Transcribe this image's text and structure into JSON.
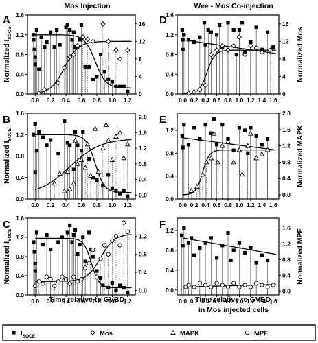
{
  "figure": {
    "left_title": "Mos Injection",
    "right_title": "Wee - Mos Co-injection",
    "left_xlabel": "Time relative to GVBD",
    "left_xlabel_sub": "I",
    "right_xlabel_line1": "Time relative to GVBD",
    "right_xlabel_sub": "I",
    "right_xlabel_line2": "in Mos injected cells",
    "ylabel_left_main": "Normalized I",
    "ylabel_left_sub": "SOCE",
    "legend": [
      {
        "marker": "square",
        "label": "I",
        "sub": "SOCE"
      },
      {
        "marker": "diamond",
        "label": "Mos",
        "sub": ""
      },
      {
        "marker": "triangle",
        "label": "MAPK",
        "sub": ""
      },
      {
        "marker": "circle",
        "label": "MPF",
        "sub": ""
      }
    ]
  },
  "chart_data": [
    {
      "panel": "A",
      "type": "scatter",
      "ylabel_left": "Normalized I SOCE",
      "ylabel_right": "",
      "xlim": [
        -0.1,
        1.3
      ],
      "xticks": [
        "0.0",
        "0.2",
        "0.4",
        "0.6",
        "0.8",
        "1.0",
        "1.2"
      ],
      "yleft": [
        0,
        1.6
      ],
      "ylticks": [
        "0.0",
        "0.4",
        "0.8",
        "1.2",
        "1.6"
      ],
      "yright": [
        0,
        18
      ],
      "yrticks": [
        "0",
        "4",
        "8",
        "12",
        "16"
      ],
      "series": [
        {
          "name": "ISOCE",
          "marker": "square",
          "axis": "left",
          "x": [
            -0.02,
            -0.02,
            -0.01,
            0.0,
            0.0,
            0.02,
            0.05,
            0.08,
            0.12,
            0.15,
            0.2,
            0.25,
            0.28,
            0.32,
            0.4,
            0.42,
            0.45,
            0.48,
            0.5,
            0.52,
            0.55,
            0.58,
            0.6,
            0.65,
            0.7,
            0.75,
            0.8,
            0.85,
            0.9,
            0.95,
            1.0,
            1.05,
            1.1,
            1.15,
            1.2
          ],
          "y": [
            1.2,
            1.1,
            0.9,
            0.75,
            0.6,
            1.3,
            0.5,
            1.15,
            0.95,
            1.05,
            1.25,
            0.95,
            1.3,
            1.0,
            1.35,
            1.4,
            1.3,
            1.1,
            1.25,
            0.95,
            0.95,
            1.1,
            1.4,
            0.55,
            0.55,
            0.3,
            0.35,
            0.8,
            0.45,
            0.3,
            0.25,
            0.15,
            0.15,
            0.15,
            0.05
          ]
        },
        {
          "name": "Mos",
          "marker": "diamond",
          "axis": "right",
          "x": [
            0.05,
            0.12,
            0.3,
            0.38,
            0.45,
            0.5,
            0.55,
            0.62,
            0.68,
            0.75,
            0.88,
            0.95,
            1.05,
            1.1,
            1.2
          ],
          "y": [
            0.2,
            1.0,
            2.5,
            6.0,
            8.5,
            9.0,
            11.0,
            13.0,
            12.5,
            12.0,
            16.0,
            12.0,
            10.0,
            8.0,
            10.0
          ]
        },
        {
          "name": "ISOCE fit",
          "line": "sigmoid",
          "axis": "left",
          "from": 1.2,
          "to": 0.12,
          "mid": 0.78,
          "slope": 0.07
        },
        {
          "name": "Mos fit",
          "line": "sigmoid",
          "axis": "right",
          "from": 0,
          "to": 12,
          "mid": 0.38,
          "slope": 0.09
        }
      ]
    },
    {
      "panel": "B",
      "type": "scatter",
      "ylabel_left": "Normalized I SOCE",
      "ylabel_right": "",
      "xlim": [
        -0.1,
        1.3
      ],
      "xticks": [
        "0.0",
        "0.2",
        "0.4",
        "0.6",
        "0.8",
        "1.0",
        "1.2"
      ],
      "yleft": [
        0,
        1.6
      ],
      "ylticks": [
        "0.0",
        "0.4",
        "0.8",
        "1.2",
        "1.6"
      ],
      "yright": [
        -0.1,
        2.1
      ],
      "yrticks": [
        "0.0",
        "0.4",
        "0.8",
        "1.2",
        "1.6",
        "2.0"
      ],
      "series": [
        {
          "name": "ISOCE",
          "marker": "square",
          "axis": "left",
          "x": [
            -0.02,
            0.0,
            0.0,
            0.02,
            0.05,
            0.1,
            0.15,
            0.2,
            0.3,
            0.38,
            0.42,
            0.45,
            0.5,
            0.52,
            0.55,
            0.6,
            0.62,
            0.7,
            0.75,
            0.8,
            0.88,
            0.95,
            1.0,
            1.05,
            1.1,
            1.15,
            1.2
          ],
          "y": [
            1.2,
            1.4,
            0.5,
            0.9,
            1.25,
            1.15,
            1.0,
            1.1,
            0.85,
            1.45,
            1.05,
            1.0,
            0.55,
            1.25,
            1.0,
            0.9,
            1.25,
            0.75,
            0.4,
            0.35,
            0.25,
            0.45,
            0.2,
            0.15,
            0.1,
            0.15,
            0.05
          ]
        },
        {
          "name": "MAPK",
          "marker": "triangle",
          "axis": "right",
          "x": [
            0.25,
            0.32,
            0.38,
            0.42,
            0.45,
            0.5,
            0.52,
            0.55,
            0.6,
            0.65,
            0.68,
            0.72,
            0.78,
            0.82,
            0.88,
            0.92,
            0.95,
            1.0,
            1.05,
            1.1,
            1.15,
            1.2
          ],
          "y": [
            0.3,
            0.55,
            0.1,
            0.6,
            0.15,
            0.3,
            1.4,
            0.8,
            0.9,
            0.7,
            1.3,
            0.5,
            1.7,
            0.6,
            1.2,
            1.8,
            1.4,
            0.9,
            1.5,
            1.6,
            0.95,
            1.3
          ]
        },
        {
          "name": "ISOCE fit",
          "line": "sigmoid",
          "axis": "left",
          "from": 1.2,
          "to": 0.12,
          "mid": 0.78,
          "slope": 0.06
        },
        {
          "name": "MAPK fit",
          "line": "sigmoid",
          "axis": "right",
          "from": 0,
          "to": 1.45,
          "mid": 0.45,
          "slope": 0.2
        }
      ]
    },
    {
      "panel": "C",
      "type": "scatter",
      "ylabel_left": "Normalized I SOCE",
      "ylabel_right": "",
      "xlim": [
        -0.1,
        1.3
      ],
      "xticks": [
        "0.0",
        "0.2",
        "0.4",
        "0.6",
        "0.8",
        "1.0",
        "1.2"
      ],
      "yleft": [
        0,
        1.6
      ],
      "ylticks": [
        "0.0",
        "0.4",
        "0.8",
        "1.2",
        "1.6"
      ],
      "yright": [
        -0.1,
        1.6
      ],
      "yrticks": [
        "0.0",
        "0.4",
        "0.8",
        "1.2"
      ],
      "series": [
        {
          "name": "ISOCE",
          "marker": "square",
          "axis": "left",
          "x": [
            -0.02,
            -0.01,
            0.0,
            0.0,
            0.02,
            0.1,
            0.15,
            0.2,
            0.3,
            0.35,
            0.42,
            0.45,
            0.48,
            0.5,
            0.52,
            0.55,
            0.58,
            0.62,
            0.65,
            0.7,
            0.72,
            0.75,
            0.8,
            0.85,
            0.88,
            0.95,
            1.0,
            1.05,
            1.1,
            1.15,
            1.2
          ],
          "y": [
            1.1,
            0.9,
            0.65,
            0.5,
            1.3,
            1.05,
            1.25,
            0.95,
            1.1,
            1.2,
            1.3,
            1.45,
            1.1,
            1.25,
            1.35,
            0.85,
            1.05,
            1.2,
            0.7,
            1.3,
            0.95,
            0.8,
            0.5,
            0.35,
            0.2,
            0.15,
            0.25,
            0.1,
            0.2,
            0.15,
            0.05
          ]
        },
        {
          "name": "MPF",
          "marker": "circle",
          "axis": "right",
          "x": [
            0.0,
            0.05,
            0.1,
            0.15,
            0.2,
            0.25,
            0.3,
            0.35,
            0.4,
            0.45,
            0.5,
            0.55,
            0.6,
            0.65,
            0.7,
            0.75,
            0.8,
            0.85,
            0.9,
            0.95,
            1.0,
            1.05,
            1.1,
            1.15,
            1.2
          ],
          "y": [
            0.1,
            0.2,
            0.15,
            0.3,
            0.25,
            0.1,
            0.2,
            0.3,
            0.25,
            0.15,
            0.3,
            0.2,
            0.25,
            0.5,
            0.6,
            0.9,
            0.3,
            0.7,
            1.0,
            0.8,
            1.1,
            1.2,
            1.0,
            1.5,
            1.3
          ]
        },
        {
          "name": "ISOCE fit",
          "line": "sigmoid",
          "axis": "left",
          "from": 1.18,
          "to": 0.15,
          "mid": 0.73,
          "slope": 0.05
        },
        {
          "name": "MPF fit",
          "line": "sigmoid",
          "axis": "right",
          "from": 0.2,
          "to": 1.25,
          "mid": 0.85,
          "slope": 0.09
        }
      ]
    },
    {
      "panel": "D",
      "type": "scatter",
      "ylabel_left": "",
      "ylabel_right": "Normalized Mos",
      "xlim": [
        -0.1,
        1.7
      ],
      "xticks": [
        "0.0",
        "0.2",
        "0.4",
        "0.6",
        "0.8",
        "1.0",
        "1.2",
        "1.4",
        "1.6"
      ],
      "yleft": [
        0,
        1.6
      ],
      "ylticks": [
        "0.0",
        "0.4",
        "0.8",
        "1.2",
        "1.6"
      ],
      "yright": [
        0,
        18
      ],
      "yrticks": [
        "0",
        "4",
        "8",
        "12",
        "16"
      ],
      "series": [
        {
          "name": "ISOCE",
          "marker": "square",
          "axis": "left",
          "x": [
            -0.01,
            0.0,
            0.0,
            0.02,
            0.1,
            0.2,
            0.3,
            0.38,
            0.4,
            0.45,
            0.5,
            0.6,
            0.65,
            0.7,
            0.8,
            0.9,
            0.95,
            1.0,
            1.05,
            1.1,
            1.2,
            1.3,
            1.4,
            1.5,
            1.6
          ],
          "y": [
            1.3,
            1.1,
            0.9,
            1.2,
            1.1,
            1.05,
            1.15,
            1.45,
            1.0,
            1.3,
            1.25,
            1.2,
            1.4,
            0.95,
            1.45,
            1.3,
            0.8,
            1.3,
            1.45,
            0.85,
            1.05,
            1.35,
            0.9,
            1.25,
            0.95
          ]
        },
        {
          "name": "Mos",
          "marker": "diamond",
          "axis": "right",
          "x": [
            0.1,
            0.2,
            0.3,
            0.4,
            0.5,
            0.6,
            0.7,
            0.8,
            0.9,
            1.0,
            1.1,
            1.2,
            1.3,
            1.4,
            1.55
          ],
          "y": [
            0.2,
            0.5,
            1.0,
            2.0,
            9.0,
            10.0,
            11.0,
            10.0,
            11.0,
            13.0,
            9.0,
            11.0,
            10.5,
            9.5,
            10.0
          ]
        },
        {
          "name": "ISOCE fit",
          "line": "linear",
          "axis": "left",
          "y0": 1.1,
          "slope": -0.17
        },
        {
          "name": "Mos fit",
          "line": "sigmoid",
          "axis": "right",
          "from": 0,
          "to": 10,
          "mid": 0.43,
          "slope": 0.07
        }
      ]
    },
    {
      "panel": "E",
      "type": "scatter",
      "ylabel_left": "",
      "ylabel_right": "Normalized MAPK",
      "xlim": [
        -0.1,
        1.7
      ],
      "xticks": [
        "0.0",
        "0.2",
        "0.4",
        "0.6",
        "0.8",
        "1.0",
        "1.2",
        "1.4",
        "1.6"
      ],
      "yleft": [
        0,
        1.5
      ],
      "ylticks": [
        "0.0",
        "0.4",
        "0.8",
        "1.2"
      ],
      "yright": [
        -0.1,
        2.0
      ],
      "yrticks": [
        "0.0",
        "0.4",
        "0.8",
        "1.2",
        "1.6",
        "2.0"
      ],
      "series": [
        {
          "name": "ISOCE",
          "marker": "square",
          "axis": "left",
          "x": [
            -0.01,
            0.0,
            0.02,
            0.1,
            0.2,
            0.3,
            0.4,
            0.5,
            0.55,
            0.6,
            0.7,
            0.8,
            0.9,
            1.0,
            1.1,
            1.15,
            1.2,
            1.3,
            1.4,
            1.5
          ],
          "y": [
            1.1,
            0.9,
            1.3,
            0.95,
            1.25,
            1.05,
            1.3,
            1.15,
            1.4,
            0.95,
            1.3,
            1.05,
            0.85,
            1.25,
            1.2,
            0.8,
            1.25,
            1.1,
            0.95,
            1.05
          ]
        },
        {
          "name": "MAPK",
          "marker": "triangle",
          "axis": "right",
          "x": [
            0.15,
            0.25,
            0.35,
            0.42,
            0.5,
            0.55,
            0.62,
            0.7,
            0.8,
            0.9,
            1.0,
            1.05,
            1.15,
            1.2,
            1.3,
            1.4,
            1.5
          ],
          "y": [
            0.1,
            0.2,
            0.5,
            0.8,
            0.9,
            1.5,
            0.8,
            1.2,
            1.3,
            0.8,
            1.1,
            0.5,
            1.2,
            1.5,
            0.9,
            1.0,
            1.1
          ]
        },
        {
          "name": "ISOCE fit",
          "line": "linear",
          "axis": "left",
          "y0": 1.07,
          "slope": -0.13
        },
        {
          "name": "MAPK fit",
          "line": "sigmoid",
          "axis": "right",
          "from": 0,
          "to": 1.1,
          "mid": 0.35,
          "slope": 0.06
        }
      ]
    },
    {
      "panel": "F",
      "type": "scatter",
      "ylabel_left": "",
      "ylabel_right": "Normalized MPF",
      "xlim": [
        -0.1,
        1.7
      ],
      "xticks": [
        "0.0",
        "0.2",
        "0.4",
        "0.6",
        "0.8",
        "1.0",
        "1.2",
        "1.4",
        "1.6"
      ],
      "yleft": [
        -0.1,
        1.45
      ],
      "ylticks": [
        "0.0",
        "0.4",
        "0.8",
        "1.2"
      ],
      "yright": [
        -0.1,
        1.85
      ],
      "yrticks": [
        "0.0",
        "0.4",
        "0.8",
        "1.2",
        "1.6"
      ],
      "series": [
        {
          "name": "ISOCE",
          "marker": "square",
          "axis": "left",
          "x": [
            -0.02,
            0.0,
            0.02,
            0.1,
            0.15,
            0.2,
            0.3,
            0.4,
            0.5,
            0.6,
            0.7,
            0.8,
            0.85,
            0.9,
            1.0,
            1.1,
            1.2,
            1.3,
            1.4,
            1.5
          ],
          "y": [
            1.1,
            0.9,
            1.25,
            0.95,
            1.05,
            0.7,
            0.85,
            0.95,
            1.05,
            0.65,
            0.9,
            1.15,
            0.6,
            0.8,
            0.95,
            0.75,
            0.85,
            0.55,
            0.7,
            0.6
          ]
        },
        {
          "name": "MPF",
          "marker": "circle",
          "axis": "right",
          "x": [
            0.05,
            0.1,
            0.2,
            0.3,
            0.4,
            0.5,
            0.6,
            0.7,
            0.8,
            0.9,
            1.0,
            1.1,
            1.2,
            1.3,
            1.4,
            1.5,
            1.6
          ],
          "y": [
            0.1,
            0.15,
            0.1,
            0.2,
            0.15,
            0.1,
            0.2,
            0.15,
            0.1,
            0.2,
            0.1,
            0.15,
            0.1,
            0.2,
            0.15,
            0.1,
            0.15
          ]
        },
        {
          "name": "ISOCE fit",
          "line": "linear",
          "axis": "left",
          "y0": 1.05,
          "slope": -0.2
        },
        {
          "name": "MPF fit",
          "line": "linear",
          "axis": "right",
          "y0": 0.1,
          "slope": 0.04
        }
      ]
    }
  ]
}
